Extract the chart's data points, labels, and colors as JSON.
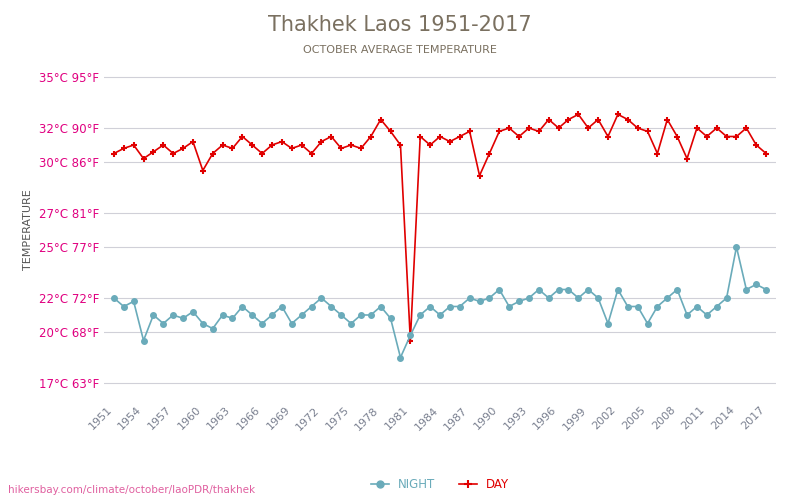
{
  "title": "Thakhek Laos 1951-2017",
  "subtitle": "OCTOBER AVERAGE TEMPERATURE",
  "ylabel": "TEMPERATURE",
  "watermark": "hikersbay.com/climate/october/laoPDR/thakhek",
  "years": [
    1951,
    1952,
    1953,
    1954,
    1955,
    1956,
    1957,
    1958,
    1959,
    1960,
    1961,
    1962,
    1963,
    1964,
    1965,
    1966,
    1967,
    1968,
    1969,
    1970,
    1971,
    1972,
    1973,
    1974,
    1975,
    1976,
    1977,
    1978,
    1979,
    1980,
    1981,
    1982,
    1983,
    1984,
    1985,
    1986,
    1987,
    1988,
    1989,
    1990,
    1991,
    1992,
    1993,
    1994,
    1995,
    1996,
    1997,
    1998,
    1999,
    2000,
    2001,
    2002,
    2003,
    2004,
    2005,
    2006,
    2007,
    2008,
    2009,
    2010,
    2011,
    2012,
    2013,
    2014,
    2015,
    2016,
    2017
  ],
  "day_temps": [
    30.5,
    30.8,
    31.0,
    30.2,
    30.6,
    31.0,
    30.5,
    30.8,
    31.2,
    29.5,
    30.5,
    31.0,
    30.8,
    31.5,
    31.0,
    30.5,
    31.0,
    31.2,
    30.8,
    31.0,
    30.5,
    31.2,
    31.5,
    30.8,
    31.0,
    30.8,
    31.5,
    32.5,
    31.8,
    31.0,
    19.5,
    31.5,
    31.0,
    31.5,
    31.2,
    31.5,
    31.8,
    29.2,
    30.5,
    31.8,
    32.0,
    31.5,
    32.0,
    31.8,
    32.5,
    32.0,
    32.5,
    32.8,
    32.0,
    32.5,
    31.5,
    32.8,
    32.5,
    32.0,
    31.8,
    30.5,
    32.5,
    31.5,
    30.2,
    32.0,
    31.5,
    32.0,
    31.5,
    31.5,
    32.0,
    31.0,
    30.5
  ],
  "night_temps": [
    22.0,
    21.5,
    21.8,
    19.5,
    21.0,
    20.5,
    21.0,
    20.8,
    21.2,
    20.5,
    20.2,
    21.0,
    20.8,
    21.5,
    21.0,
    20.5,
    21.0,
    21.5,
    20.5,
    21.0,
    21.5,
    22.0,
    21.5,
    21.0,
    20.5,
    21.0,
    21.0,
    21.5,
    20.8,
    18.5,
    19.8,
    21.0,
    21.5,
    21.0,
    21.5,
    21.5,
    22.0,
    21.8,
    22.0,
    22.5,
    21.5,
    21.8,
    22.0,
    22.5,
    22.0,
    22.5,
    22.5,
    22.0,
    22.5,
    22.0,
    20.5,
    22.5,
    21.5,
    21.5,
    20.5,
    21.5,
    22.0,
    22.5,
    21.0,
    21.5,
    21.0,
    21.5,
    22.0,
    25.0,
    22.5,
    22.8,
    22.5
  ],
  "day_color": "#e00000",
  "night_color": "#6aabba",
  "title_color": "#7a7060",
  "subtitle_color": "#7a7060",
  "ylabel_color": "#555555",
  "tick_label_color": "#e00080",
  "xtick_color": "#7a8090",
  "grid_color": "#d0d0d8",
  "watermark_color": "#e060a0",
  "yticks_c": [
    17,
    20,
    22,
    25,
    27,
    30,
    32,
    35
  ],
  "yticks_f": [
    63,
    68,
    72,
    77,
    81,
    86,
    90,
    95
  ],
  "ylim": [
    16,
    36
  ],
  "xtick_years": [
    1951,
    1954,
    1957,
    1960,
    1963,
    1966,
    1969,
    1972,
    1975,
    1978,
    1981,
    1984,
    1987,
    1990,
    1993,
    1996,
    1999,
    2002,
    2005,
    2008,
    2011,
    2014,
    2017
  ],
  "background_color": "#ffffff"
}
